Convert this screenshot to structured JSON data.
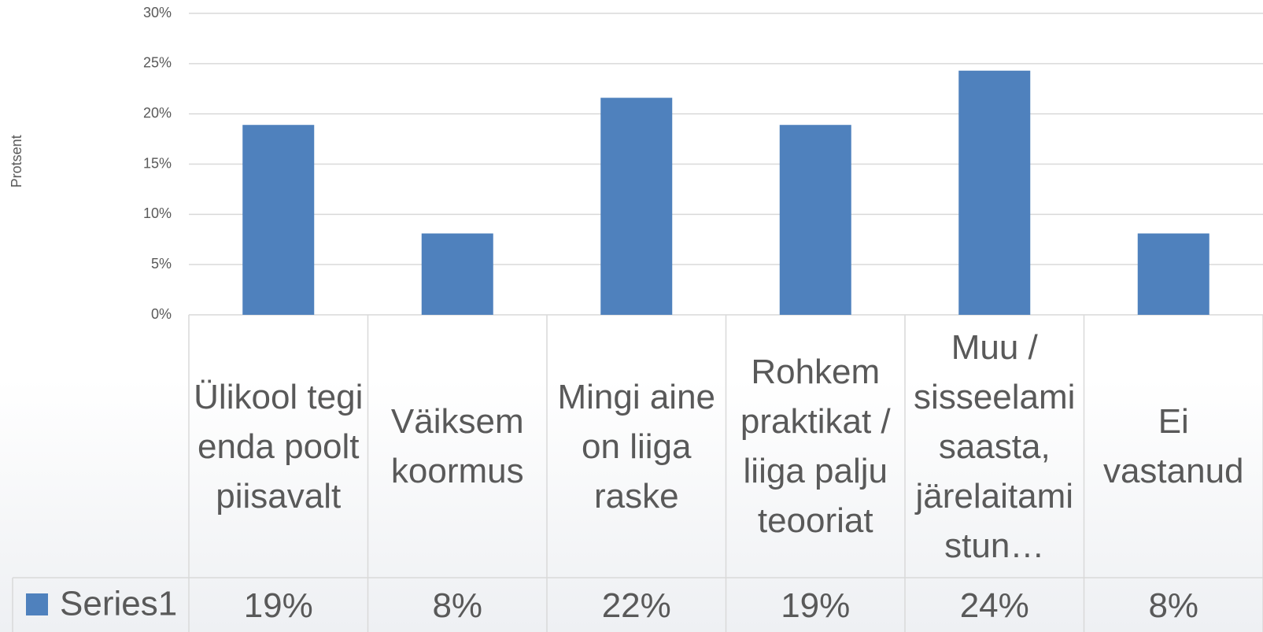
{
  "chart_data": {
    "type": "bar",
    "y_label": "Protsent",
    "categories": [
      "Ülikool tegi enda poolt piisavalt",
      "Väiksem koormus",
      "Mingi aine on liiga raske",
      "Rohkem praktikat / liiga palju teooriat",
      "Muu / sisseelamisaasta, järelaitamistun…",
      "Ei vastanud"
    ],
    "series": [
      {
        "name": "Series1",
        "color": "#4f81bd",
        "values": [
          18.9,
          8.1,
          21.6,
          18.9,
          24.3,
          8.1
        ],
        "value_labels": [
          "19%",
          "8%",
          "22%",
          "19%",
          "24%",
          "8%"
        ]
      }
    ],
    "ylim": [
      0,
      30
    ],
    "yticks": [
      {
        "value": 0,
        "label": "0%"
      },
      {
        "value": 5,
        "label": "5%"
      },
      {
        "value": 10,
        "label": "10%"
      },
      {
        "value": 15,
        "label": "15%"
      },
      {
        "value": 20,
        "label": "20%"
      },
      {
        "value": 25,
        "label": "25%"
      },
      {
        "value": 30,
        "label": "30%"
      }
    ],
    "grid": true
  }
}
